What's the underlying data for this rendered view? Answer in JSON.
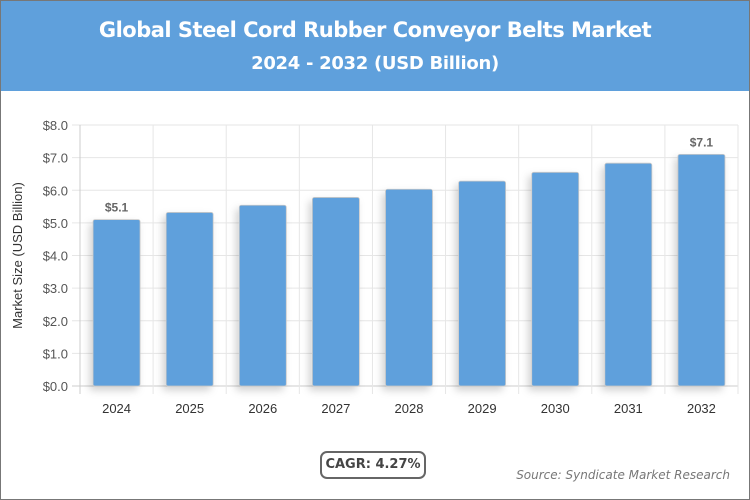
{
  "header": {
    "title": "Global Steel Cord Rubber Conveyor Belts Market",
    "subtitle": "2024 - 2032 (USD Billion)"
  },
  "cagr": "CAGR: 4.27%",
  "source": "Source: Syndicate Market Research",
  "chart_data": {
    "type": "bar",
    "title": "Global Steel Cord Rubber Conveyor Belts Market",
    "subtitle": "2024 - 2032 (USD Billion)",
    "xlabel": "",
    "ylabel": "Market Size (USD Billion)",
    "categories": [
      "2024",
      "2025",
      "2026",
      "2027",
      "2028",
      "2029",
      "2030",
      "2031",
      "2032"
    ],
    "values": [
      5.1,
      5.32,
      5.54,
      5.78,
      6.03,
      6.28,
      6.55,
      6.83,
      7.1
    ],
    "data_labels": {
      "2024": "$5.1",
      "2032": "$7.1"
    },
    "ylim": [
      0,
      8
    ],
    "yticks": [
      "$0.0",
      "$1.0",
      "$2.0",
      "$3.0",
      "$4.0",
      "$5.0",
      "$6.0",
      "$7.0",
      "$8.0"
    ],
    "grid": true,
    "bar_color": "#5fa0dc"
  }
}
